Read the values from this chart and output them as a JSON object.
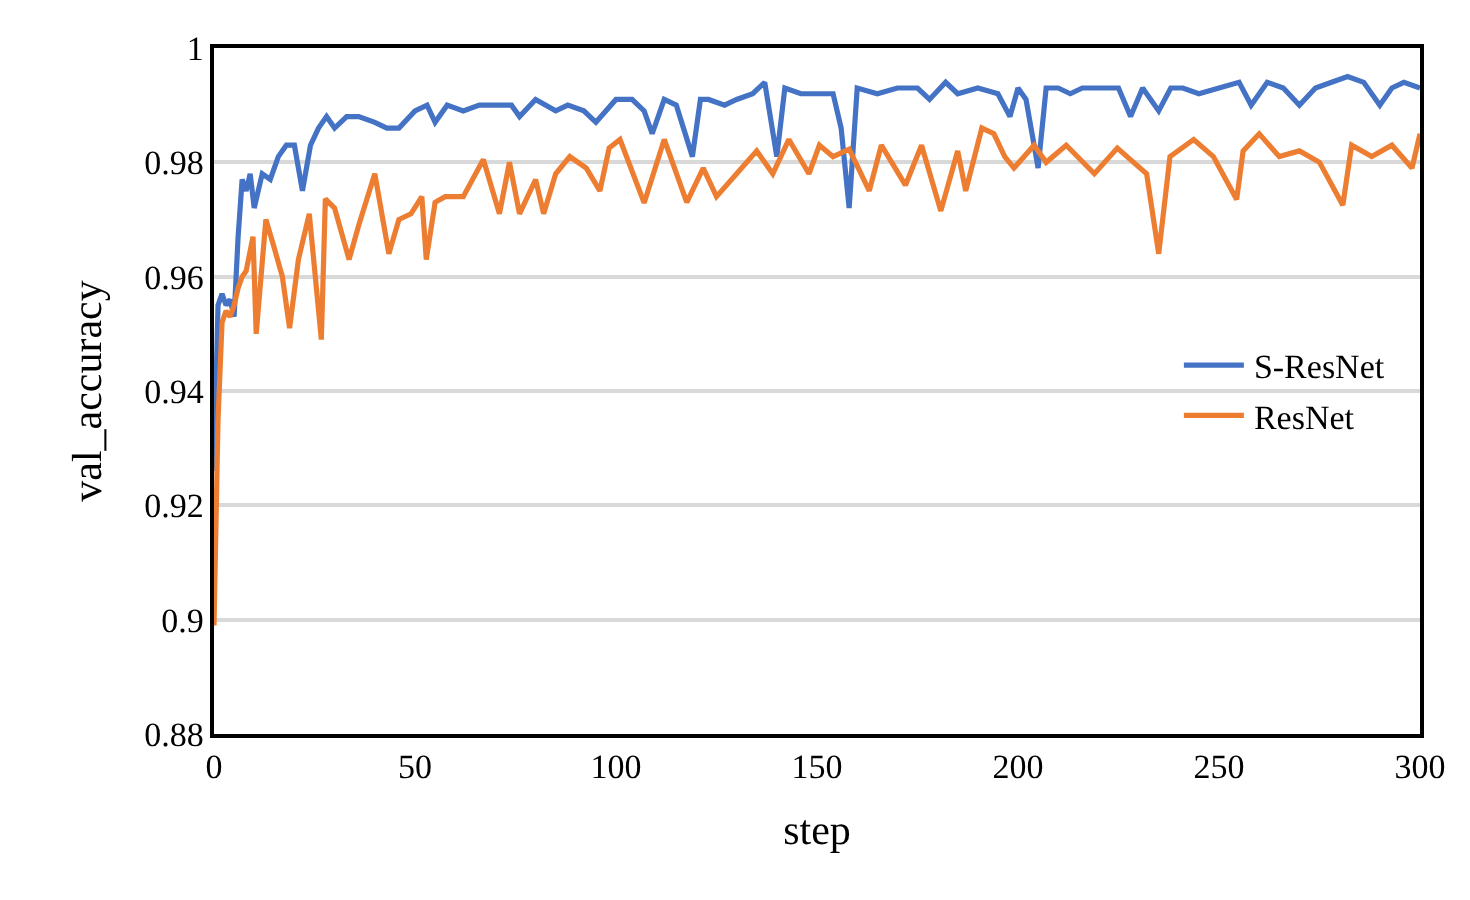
{
  "chart_data": {
    "type": "line",
    "xlabel": "step",
    "ylabel": "val_accuracy",
    "xlim": [
      0,
      300
    ],
    "xticks": [
      0,
      50,
      100,
      150,
      200,
      250,
      300
    ],
    "ylim": [
      0.88,
      1
    ],
    "yticks": [
      0.88,
      0.9,
      0.92,
      0.94,
      0.96,
      0.98,
      1
    ],
    "grid": "y",
    "legend": "right",
    "line_style": "solid",
    "marker": "none",
    "series": [
      {
        "name": "S-ResNet",
        "color": "#4472c4",
        "x": [
          0,
          1,
          2,
          3,
          4,
          5,
          6,
          7,
          8,
          9,
          10,
          12,
          14,
          16,
          18,
          20,
          22,
          24,
          26,
          28,
          30,
          33,
          36,
          40,
          43,
          46,
          50,
          53,
          55,
          58,
          62,
          66,
          70,
          74,
          76,
          80,
          85,
          88,
          92,
          95,
          100,
          104,
          107,
          109,
          112,
          115,
          119,
          121,
          123,
          127,
          130,
          134,
          137,
          140,
          142,
          146,
          150,
          154,
          156,
          158,
          160,
          165,
          170,
          175,
          178,
          182,
          185,
          190,
          195,
          198,
          200,
          202,
          205,
          207,
          210,
          213,
          216,
          220,
          225,
          228,
          231,
          235,
          238,
          241,
          245,
          250,
          255,
          258,
          262,
          266,
          270,
          274,
          278,
          282,
          286,
          290,
          293,
          296,
          300
        ],
        "values": [
          0.926,
          0.955,
          0.957,
          0.955,
          0.956,
          0.953,
          0.967,
          0.977,
          0.975,
          0.978,
          0.972,
          0.978,
          0.977,
          0.981,
          0.983,
          0.983,
          0.975,
          0.983,
          0.986,
          0.988,
          0.986,
          0.988,
          0.988,
          0.987,
          0.986,
          0.986,
          0.989,
          0.99,
          0.987,
          0.99,
          0.989,
          0.99,
          0.99,
          0.99,
          0.988,
          0.991,
          0.989,
          0.99,
          0.989,
          0.987,
          0.991,
          0.991,
          0.989,
          0.985,
          0.991,
          0.99,
          0.981,
          0.991,
          0.991,
          0.99,
          0.991,
          0.992,
          0.994,
          0.981,
          0.993,
          0.992,
          0.992,
          0.992,
          0.986,
          0.972,
          0.993,
          0.992,
          0.993,
          0.993,
          0.991,
          0.994,
          0.992,
          0.993,
          0.992,
          0.988,
          0.993,
          0.991,
          0.979,
          0.993,
          0.993,
          0.992,
          0.993,
          0.993,
          0.993,
          0.988,
          0.993,
          0.989,
          0.993,
          0.993,
          0.992,
          0.993,
          0.994,
          0.99,
          0.994,
          0.993,
          0.99,
          0.993,
          0.994,
          0.995,
          0.994,
          0.99,
          0.993,
          0.994,
          0.993
        ]
      },
      {
        "name": "ResNet",
        "color": "#ed7d31",
        "x": [
          0,
          1,
          2,
          3,
          4,
          5,
          6,
          7,
          8,
          9.7,
          10.5,
          12.9,
          15,
          17,
          18.8,
          21,
          23.7,
          26.7,
          27.7,
          30,
          33.6,
          36,
          40,
          43.5,
          46,
          49,
          51.7,
          52.8,
          55,
          57.5,
          62,
          67,
          71,
          73.5,
          76,
          80,
          82,
          85,
          88.5,
          92.6,
          96,
          98.3,
          101,
          107,
          112,
          117.6,
          121.7,
          125,
          130,
          135,
          139,
          143,
          148,
          150.6,
          154,
          158,
          163,
          166,
          172,
          176,
          180.8,
          185,
          187,
          191,
          194,
          196.7,
          199,
          204,
          207,
          212,
          219,
          224.7,
          232,
          235,
          237.8,
          243.7,
          248.6,
          254.4,
          256,
          260,
          265,
          270,
          275,
          280.8,
          283,
          288,
          293,
          298,
          300
        ],
        "values": [
          0.899,
          0.935,
          0.952,
          0.954,
          0.953,
          0.955,
          0.958,
          0.96,
          0.961,
          0.967,
          0.95,
          0.97,
          0.965,
          0.96,
          0.951,
          0.963,
          0.971,
          0.949,
          0.9736,
          0.972,
          0.963,
          0.969,
          0.978,
          0.964,
          0.97,
          0.971,
          0.974,
          0.963,
          0.973,
          0.974,
          0.974,
          0.9805,
          0.971,
          0.98,
          0.971,
          0.977,
          0.971,
          0.978,
          0.981,
          0.979,
          0.975,
          0.9825,
          0.984,
          0.9729,
          0.984,
          0.973,
          0.979,
          0.974,
          0.978,
          0.982,
          0.978,
          0.984,
          0.978,
          0.983,
          0.981,
          0.9823,
          0.975,
          0.983,
          0.976,
          0.983,
          0.9715,
          0.982,
          0.975,
          0.986,
          0.985,
          0.981,
          0.979,
          0.983,
          0.98,
          0.983,
          0.978,
          0.9825,
          0.978,
          0.964,
          0.981,
          0.984,
          0.981,
          0.9735,
          0.982,
          0.985,
          0.981,
          0.982,
          0.98,
          0.9725,
          0.983,
          0.981,
          0.983,
          0.979,
          0.985
        ]
      }
    ]
  }
}
